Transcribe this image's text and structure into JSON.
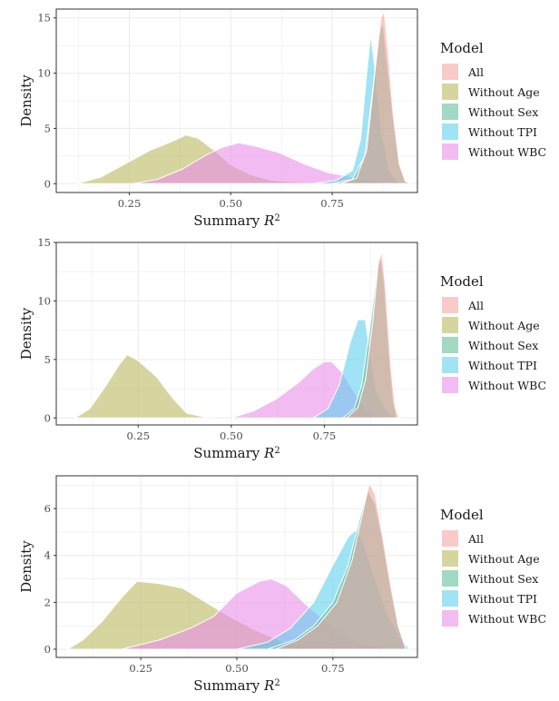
{
  "chart_data": [
    {
      "type": "area",
      "xlabel": "Summary R",
      "xlabel_sup": "2",
      "ylabel": "Density",
      "xlim": [
        0.07,
        0.96
      ],
      "ylim": [
        -0.8,
        15.8
      ],
      "xticks": [
        0.25,
        0.5,
        0.75
      ],
      "xtick_labels": [
        "0.25",
        "0.50",
        "0.75"
      ],
      "yticks": [
        0,
        5,
        10,
        15
      ],
      "ytick_labels": [
        "0",
        "5",
        "10",
        "15"
      ],
      "grid": true,
      "legend": {
        "title": "Model",
        "placement": "right"
      },
      "series": [
        {
          "name": "Without Age",
          "color": "#b8b65a",
          "points": [
            [
              0.12,
              0
            ],
            [
              0.18,
              0.6
            ],
            [
              0.24,
              1.8
            ],
            [
              0.3,
              3.0
            ],
            [
              0.36,
              3.9
            ],
            [
              0.39,
              4.4
            ],
            [
              0.42,
              4.1
            ],
            [
              0.46,
              3.0
            ],
            [
              0.5,
              1.7
            ],
            [
              0.55,
              0.8
            ],
            [
              0.6,
              0.3
            ],
            [
              0.68,
              0.1
            ],
            [
              0.75,
              0
            ]
          ]
        },
        {
          "name": "Without WBC",
          "color": "#e88ce8",
          "points": [
            [
              0.26,
              0
            ],
            [
              0.32,
              0.4
            ],
            [
              0.38,
              1.3
            ],
            [
              0.44,
              2.6
            ],
            [
              0.48,
              3.3
            ],
            [
              0.52,
              3.7
            ],
            [
              0.56,
              3.4
            ],
            [
              0.62,
              2.8
            ],
            [
              0.68,
              1.8
            ],
            [
              0.74,
              1.0
            ],
            [
              0.8,
              0.6
            ],
            [
              0.86,
              0.2
            ],
            [
              0.9,
              0
            ]
          ]
        },
        {
          "name": "Without TPI",
          "color": "#5ccfee",
          "points": [
            [
              0.7,
              0
            ],
            [
              0.76,
              0.3
            ],
            [
              0.8,
              1.2
            ],
            [
              0.82,
              4.0
            ],
            [
              0.835,
              10.0
            ],
            [
              0.845,
              13.5
            ],
            [
              0.855,
              10.5
            ],
            [
              0.87,
              5.0
            ],
            [
              0.89,
              1.2
            ],
            [
              0.91,
              0.2
            ],
            [
              0.93,
              0
            ]
          ]
        },
        {
          "name": "Without Sex",
          "color": "#5dbe96",
          "points": [
            [
              0.75,
              0
            ],
            [
              0.8,
              0.4
            ],
            [
              0.83,
              2.5
            ],
            [
              0.85,
              8.5
            ],
            [
              0.865,
              13.5
            ],
            [
              0.875,
              14.6
            ],
            [
              0.885,
              11.0
            ],
            [
              0.9,
              6.0
            ],
            [
              0.915,
              1.8
            ],
            [
              0.93,
              0.2
            ],
            [
              0.945,
              0
            ]
          ]
        },
        {
          "name": "All",
          "color": "#f3a6a0",
          "points": [
            [
              0.77,
              0
            ],
            [
              0.81,
              0.5
            ],
            [
              0.835,
              3.0
            ],
            [
              0.855,
              10.0
            ],
            [
              0.87,
              15.0
            ],
            [
              0.878,
              15.6
            ],
            [
              0.888,
              12.0
            ],
            [
              0.9,
              6.5
            ],
            [
              0.915,
              1.8
            ],
            [
              0.93,
              0.2
            ],
            [
              0.945,
              0
            ]
          ]
        }
      ]
    },
    {
      "type": "area",
      "xlabel": "Summary R",
      "xlabel_sup": "2",
      "ylabel": "Density",
      "xlim": [
        0.03,
        1.0
      ],
      "ylim": [
        -0.6,
        15.0
      ],
      "xticks": [
        0.25,
        0.5,
        0.75
      ],
      "xtick_labels": [
        "0.25",
        "0.50",
        "0.75"
      ],
      "yticks": [
        0,
        5,
        10,
        15
      ],
      "ytick_labels": [
        "0",
        "5",
        "10",
        "15"
      ],
      "grid": true,
      "legend": {
        "title": "Model",
        "placement": "right"
      },
      "series": [
        {
          "name": "Without Age",
          "color": "#b8b65a",
          "points": [
            [
              0.08,
              0
            ],
            [
              0.12,
              0.8
            ],
            [
              0.16,
              2.6
            ],
            [
              0.2,
              4.6
            ],
            [
              0.22,
              5.4
            ],
            [
              0.25,
              4.9
            ],
            [
              0.3,
              3.5
            ],
            [
              0.34,
              1.8
            ],
            [
              0.38,
              0.4
            ],
            [
              0.44,
              0
            ]
          ]
        },
        {
          "name": "Without WBC",
          "color": "#e88ce8",
          "points": [
            [
              0.5,
              0
            ],
            [
              0.56,
              0.6
            ],
            [
              0.62,
              1.6
            ],
            [
              0.68,
              3.0
            ],
            [
              0.72,
              4.2
            ],
            [
              0.75,
              4.8
            ],
            [
              0.77,
              4.8
            ],
            [
              0.8,
              3.8
            ],
            [
              0.83,
              2.2
            ],
            [
              0.86,
              0.8
            ],
            [
              0.9,
              0
            ]
          ]
        },
        {
          "name": "Without TPI",
          "color": "#5ccfee",
          "points": [
            [
              0.72,
              0
            ],
            [
              0.76,
              0.8
            ],
            [
              0.79,
              2.8
            ],
            [
              0.82,
              6.5
            ],
            [
              0.84,
              8.4
            ],
            [
              0.86,
              8.4
            ],
            [
              0.87,
              6.0
            ],
            [
              0.89,
              2.2
            ],
            [
              0.92,
              0.5
            ],
            [
              0.95,
              0
            ]
          ]
        },
        {
          "name": "Without Sex",
          "color": "#5dbe96",
          "points": [
            [
              0.8,
              0
            ],
            [
              0.83,
              0.8
            ],
            [
              0.85,
              2.8
            ],
            [
              0.87,
              7.2
            ],
            [
              0.89,
              12.2
            ],
            [
              0.9,
              13.9
            ],
            [
              0.91,
              11.8
            ],
            [
              0.925,
              5.0
            ],
            [
              0.935,
              1.5
            ],
            [
              0.945,
              0
            ]
          ]
        },
        {
          "name": "All",
          "color": "#f3a6a0",
          "points": [
            [
              0.81,
              0
            ],
            [
              0.84,
              0.9
            ],
            [
              0.86,
              3.2
            ],
            [
              0.88,
              8.2
            ],
            [
              0.895,
              13.3
            ],
            [
              0.905,
              14.2
            ],
            [
              0.915,
              11.0
            ],
            [
              0.93,
              4.0
            ],
            [
              0.94,
              1.0
            ],
            [
              0.95,
              0
            ]
          ]
        }
      ]
    },
    {
      "type": "area",
      "xlabel": "Summary R",
      "xlabel_sup": "2",
      "ylabel": "Density",
      "xlim": [
        0.03,
        0.97
      ],
      "ylim": [
        -0.35,
        7.4
      ],
      "xticks": [
        0.25,
        0.5,
        0.75
      ],
      "xtick_labels": [
        "0.25",
        "0.50",
        "0.75"
      ],
      "yticks": [
        0,
        2,
        4,
        6
      ],
      "ytick_labels": [
        "0",
        "2",
        "4",
        "6"
      ],
      "grid": true,
      "legend": {
        "title": "Model",
        "placement": "right"
      },
      "series": [
        {
          "name": "Without Age",
          "color": "#b8b65a",
          "points": [
            [
              0.06,
              0
            ],
            [
              0.1,
              0.4
            ],
            [
              0.15,
              1.2
            ],
            [
              0.2,
              2.2
            ],
            [
              0.24,
              2.9
            ],
            [
              0.3,
              2.8
            ],
            [
              0.36,
              2.6
            ],
            [
              0.42,
              2.0
            ],
            [
              0.48,
              1.4
            ],
            [
              0.55,
              0.8
            ],
            [
              0.62,
              0.3
            ],
            [
              0.7,
              0
            ]
          ]
        },
        {
          "name": "Without WBC",
          "color": "#e88ce8",
          "points": [
            [
              0.2,
              0
            ],
            [
              0.3,
              0.4
            ],
            [
              0.38,
              0.9
            ],
            [
              0.44,
              1.4
            ],
            [
              0.5,
              2.4
            ],
            [
              0.56,
              2.9
            ],
            [
              0.59,
              3.0
            ],
            [
              0.63,
              2.7
            ],
            [
              0.68,
              1.9
            ],
            [
              0.73,
              1.2
            ],
            [
              0.78,
              0.6
            ],
            [
              0.84,
              0.2
            ],
            [
              0.9,
              0
            ]
          ]
        },
        {
          "name": "Without TPI",
          "color": "#5ccfee",
          "points": [
            [
              0.5,
              0
            ],
            [
              0.58,
              0.3
            ],
            [
              0.64,
              0.9
            ],
            [
              0.7,
              2.0
            ],
            [
              0.75,
              3.6
            ],
            [
              0.79,
              4.8
            ],
            [
              0.81,
              5.1
            ],
            [
              0.83,
              4.5
            ],
            [
              0.86,
              3.0
            ],
            [
              0.89,
              1.6
            ],
            [
              0.92,
              0.6
            ],
            [
              0.95,
              0
            ]
          ]
        },
        {
          "name": "Without Sex",
          "color": "#5dbe96",
          "points": [
            [
              0.58,
              0
            ],
            [
              0.65,
              0.4
            ],
            [
              0.7,
              1.0
            ],
            [
              0.75,
              2.0
            ],
            [
              0.79,
              3.6
            ],
            [
              0.82,
              5.6
            ],
            [
              0.84,
              6.8
            ],
            [
              0.86,
              6.2
            ],
            [
              0.88,
              4.6
            ],
            [
              0.9,
              2.6
            ],
            [
              0.92,
              1.0
            ],
            [
              0.94,
              0
            ]
          ]
        },
        {
          "name": "All",
          "color": "#f3a6a0",
          "points": [
            [
              0.6,
              0
            ],
            [
              0.66,
              0.4
            ],
            [
              0.71,
              1.0
            ],
            [
              0.76,
              2.0
            ],
            [
              0.8,
              3.8
            ],
            [
              0.83,
              6.0
            ],
            [
              0.845,
              7.1
            ],
            [
              0.86,
              6.6
            ],
            [
              0.88,
              4.8
            ],
            [
              0.9,
              2.8
            ],
            [
              0.92,
              1.0
            ],
            [
              0.94,
              0
            ]
          ]
        }
      ]
    }
  ]
}
